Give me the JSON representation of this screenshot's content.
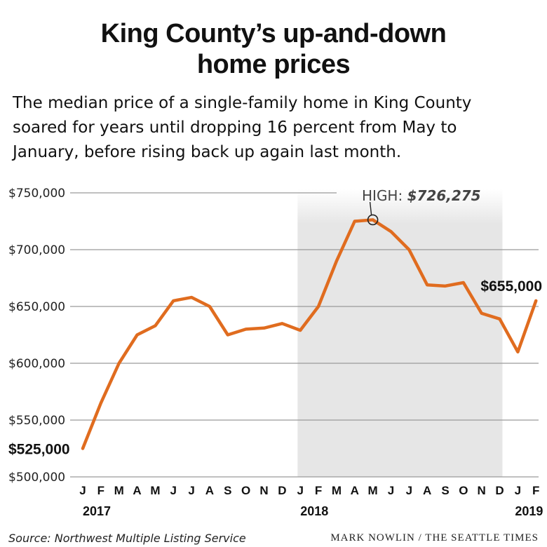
{
  "header": {
    "title_line1": "King County’s up-and-down",
    "title_line2": "home prices",
    "subtitle_lines": [
      "The median price of a single-family home in King County",
      "soared for years until dropping 16 percent from May to",
      "January,  before rising back up again last month."
    ]
  },
  "footer": {
    "source": "Source: Northwest Multiple Listing Service",
    "credit": "MARK NOWLIN / THE SEATTLE TIMES"
  },
  "colors": {
    "line": "#e06c1f",
    "shade": "#e6e6e6",
    "grid": "#9a9a9a"
  },
  "chart_data": {
    "type": "line",
    "x": [
      "2017-01",
      "2017-02",
      "2017-03",
      "2017-04",
      "2017-05",
      "2017-06",
      "2017-07",
      "2017-08",
      "2017-09",
      "2017-10",
      "2017-11",
      "2017-12",
      "2018-01",
      "2018-02",
      "2018-03",
      "2018-04",
      "2018-05",
      "2018-06",
      "2018-07",
      "2018-08",
      "2018-09",
      "2018-10",
      "2018-11",
      "2018-12",
      "2019-01",
      "2019-02"
    ],
    "month_labels": [
      "J",
      "F",
      "M",
      "A",
      "M",
      "J",
      "J",
      "A",
      "S",
      "O",
      "N",
      "D",
      "J",
      "F",
      "M",
      "A",
      "M",
      "J",
      "J",
      "A",
      "S",
      "O",
      "N",
      "D",
      "J",
      "F"
    ],
    "year_labels": [
      {
        "index": 0,
        "label": "2017"
      },
      {
        "index": 12,
        "label": "2018"
      },
      {
        "index": 24,
        "label": "2019"
      }
    ],
    "series": [
      {
        "values": [
          525000,
          565000,
          600000,
          625000,
          633000,
          655000,
          658000,
          650000,
          625000,
          630000,
          631000,
          635000,
          629000,
          650000,
          690000,
          725000,
          726275,
          716000,
          700000,
          669000,
          668000,
          671000,
          644000,
          639000,
          610000,
          655000
        ]
      }
    ],
    "yticks": [
      500000,
      550000,
      600000,
      650000,
      700000,
      750000
    ],
    "ytick_labels": [
      "$500,000",
      "$550,000",
      "$600,000",
      "$650,000",
      "$700,000",
      "$750,000"
    ],
    "ylim": [
      500000,
      750000
    ],
    "shaded_range": {
      "start": "2018-01",
      "end": "2018-12"
    },
    "annotations": {
      "start": {
        "index": 0,
        "label": "$525,000"
      },
      "high": {
        "index": 16,
        "prefix": "HIGH: ",
        "value": "$726,275"
      },
      "end": {
        "index": 25,
        "label": "$655,000"
      }
    },
    "grid": true,
    "legend": "none"
  }
}
